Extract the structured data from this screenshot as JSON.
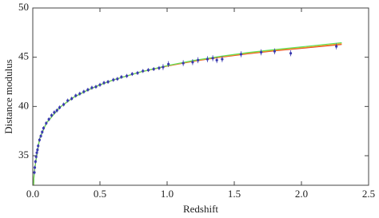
{
  "chart_data": {
    "type": "scatter",
    "x_label": "Redshift",
    "y_label": "Distance modulus",
    "xlim": [
      0,
      2.5
    ],
    "ylim": [
      32,
      50
    ],
    "xticks": [
      {
        "value": 0,
        "label": "0.0"
      },
      0.5,
      {
        "value": 1,
        "label": "1.0"
      },
      1.5,
      {
        "value": 2,
        "label": "2.0"
      },
      2.5
    ],
    "yticks": [
      35,
      40,
      45,
      50
    ],
    "points": {
      "color": "#3b3bb0",
      "x": [
        0.012,
        0.015,
        0.02,
        0.025,
        0.03,
        0.035,
        0.04,
        0.05,
        0.06,
        0.07,
        0.08,
        0.1,
        0.12,
        0.14,
        0.16,
        0.18,
        0.2,
        0.23,
        0.26,
        0.29,
        0.32,
        0.35,
        0.38,
        0.41,
        0.44,
        0.47,
        0.5,
        0.53,
        0.56,
        0.6,
        0.63,
        0.66,
        0.7,
        0.74,
        0.78,
        0.82,
        0.86,
        0.9,
        0.94,
        0.97,
        1.01,
        1.12,
        1.19,
        1.23,
        1.3,
        1.34,
        1.37,
        1.41,
        1.55,
        1.7,
        1.8,
        1.92,
        2.26
      ],
      "values": [
        33.3,
        33.8,
        34.4,
        34.9,
        35.3,
        35.6,
        36.0,
        36.6,
        37.0,
        37.4,
        37.8,
        38.3,
        38.7,
        39.1,
        39.4,
        39.6,
        39.9,
        40.2,
        40.6,
        40.8,
        41.1,
        41.3,
        41.5,
        41.7,
        41.9,
        42.0,
        42.2,
        42.4,
        42.5,
        42.7,
        42.8,
        43.0,
        43.1,
        43.3,
        43.4,
        43.6,
        43.7,
        43.8,
        43.9,
        44.0,
        44.3,
        44.4,
        44.5,
        44.7,
        44.8,
        44.9,
        44.7,
        44.8,
        45.3,
        45.5,
        45.6,
        45.4,
        46.1
      ],
      "errors": [
        0.2,
        0.2,
        0.2,
        0.2,
        0.2,
        0.2,
        0.2,
        0.2,
        0.2,
        0.2,
        0.2,
        0.2,
        0.2,
        0.2,
        0.2,
        0.2,
        0.2,
        0.2,
        0.2,
        0.2,
        0.2,
        0.2,
        0.2,
        0.2,
        0.2,
        0.2,
        0.2,
        0.2,
        0.2,
        0.2,
        0.2,
        0.2,
        0.2,
        0.2,
        0.2,
        0.2,
        0.2,
        0.2,
        0.2,
        0.3,
        0.3,
        0.3,
        0.3,
        0.3,
        0.3,
        0.3,
        0.3,
        0.3,
        0.3,
        0.3,
        0.3,
        0.3,
        0.3
      ]
    },
    "curves": [
      {
        "color": "#e03a2a",
        "x": [
          0.006,
          0.01,
          0.02,
          0.05,
          0.1,
          0.2,
          0.3,
          0.4,
          0.5,
          0.6,
          0.8,
          1.0,
          1.2,
          1.4,
          1.6,
          1.8,
          2.0,
          2.3
        ],
        "values": [
          32.05,
          33.17,
          34.2,
          36.7,
          38.3,
          39.9,
          40.9,
          41.6,
          42.2,
          42.7,
          43.5,
          44.1,
          44.6,
          45.0,
          45.35,
          45.65,
          45.9,
          46.3
        ]
      },
      {
        "color": "#f0a020",
        "x": [
          0.006,
          0.01,
          0.02,
          0.05,
          0.1,
          0.2,
          0.3,
          0.4,
          0.5,
          0.6,
          0.8,
          1.0,
          1.2,
          1.4,
          1.6,
          1.8,
          2.0,
          2.3
        ],
        "values": [
          32.05,
          33.17,
          34.2,
          36.7,
          38.3,
          39.9,
          40.9,
          41.6,
          42.2,
          42.7,
          43.5,
          44.12,
          44.63,
          45.04,
          45.4,
          45.7,
          45.96,
          46.37
        ]
      },
      {
        "color": "#5ce05c",
        "x": [
          0.006,
          0.01,
          0.02,
          0.05,
          0.1,
          0.2,
          0.3,
          0.4,
          0.5,
          0.6,
          0.8,
          1.0,
          1.2,
          1.4,
          1.6,
          1.8,
          2.0,
          2.3
        ],
        "values": [
          32.05,
          33.17,
          34.2,
          36.7,
          38.3,
          39.9,
          40.9,
          41.6,
          42.2,
          42.7,
          43.5,
          44.15,
          44.68,
          45.1,
          45.47,
          45.78,
          46.05,
          46.48
        ]
      }
    ]
  }
}
